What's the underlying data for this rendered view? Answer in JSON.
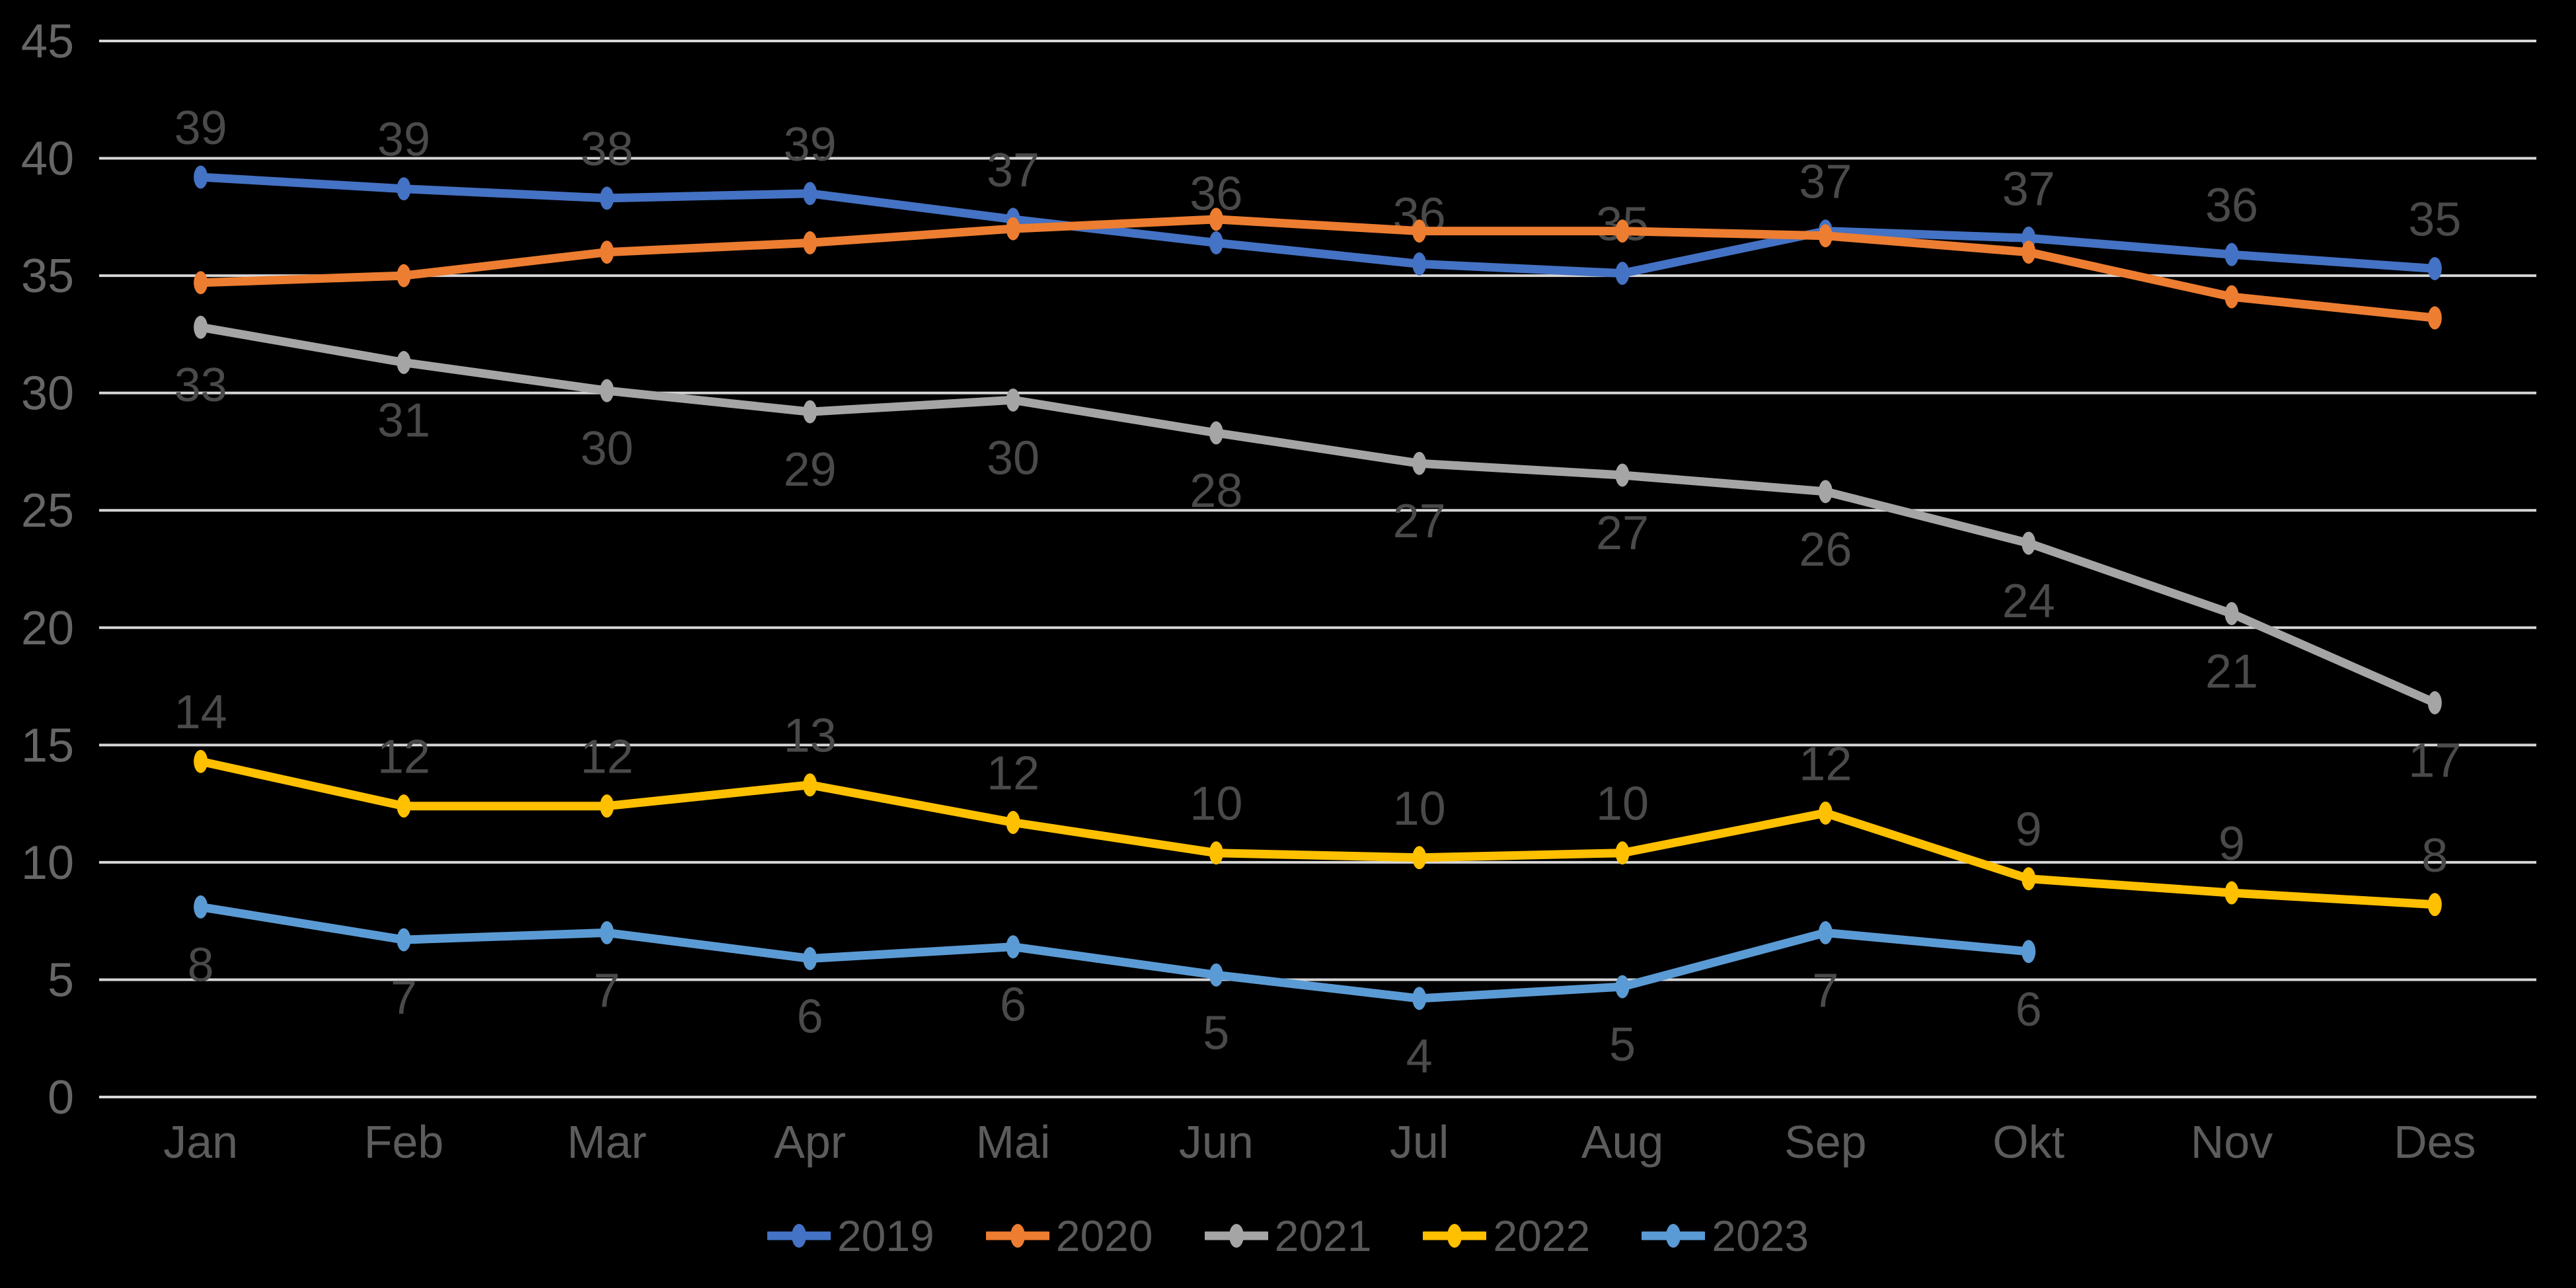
{
  "chart_data": {
    "type": "line",
    "title": "",
    "xlabel": "",
    "ylabel": "",
    "categories": [
      "Jan",
      "Feb",
      "Mar",
      "Apr",
      "Mai",
      "Jun",
      "Jul",
      "Aug",
      "Sep",
      "Okt",
      "Nov",
      "Des"
    ],
    "y_axis": {
      "min": 0,
      "max": 45,
      "step": 5,
      "tick_labels": [
        "0",
        "5",
        "10",
        "15",
        "20",
        "25",
        "30",
        "35",
        "40",
        "45"
      ]
    },
    "grid": true,
    "legend_position": "bottom",
    "series": [
      {
        "name": "2019",
        "color": "#4472C4",
        "label_position": "above",
        "values": [
          39.2,
          38.7,
          38.3,
          38.5,
          37.4,
          36.4,
          35.5,
          35.1,
          36.9,
          36.6,
          35.9,
          35.3
        ],
        "data_labels": [
          "39",
          "39",
          "38",
          "39",
          "37",
          "36",
          "36",
          "35",
          "37",
          "37",
          "36",
          "35"
        ]
      },
      {
        "name": "2020",
        "color": "#ED7D31",
        "label_position": null,
        "values": [
          34.7,
          35.0,
          36.0,
          36.4,
          37.0,
          37.4,
          36.9,
          36.9,
          36.7,
          36.0,
          34.1,
          33.2
        ],
        "data_labels": null
      },
      {
        "name": "2021",
        "color": "#A5A5A5",
        "label_position": "below",
        "values": [
          32.8,
          31.3,
          30.1,
          29.2,
          29.7,
          28.3,
          27.0,
          26.5,
          25.8,
          23.6,
          20.6,
          16.8
        ],
        "data_labels": [
          "33",
          "31",
          "30",
          "29",
          "30",
          "28",
          "27",
          "27",
          "26",
          "24",
          "21",
          "17"
        ]
      },
      {
        "name": "2022",
        "color": "#FFC000",
        "label_position": "above",
        "values": [
          14.3,
          12.4,
          12.4,
          13.3,
          11.7,
          10.4,
          10.2,
          10.4,
          12.1,
          9.3,
          8.7,
          8.2
        ],
        "data_labels": [
          "14",
          "12",
          "12",
          "13",
          "12",
          "10",
          "10",
          "10",
          "12",
          "9",
          "9",
          "8"
        ]
      },
      {
        "name": "2023",
        "color": "#5B9BD5",
        "label_position": "below",
        "values": [
          8.1,
          6.7,
          7.0,
          5.9,
          6.4,
          5.2,
          4.2,
          4.7,
          7.0,
          6.2
        ],
        "data_labels": [
          "8",
          "7",
          "7",
          "6",
          "6",
          "5",
          "4",
          "5",
          "7",
          "6"
        ]
      }
    ],
    "legend": [
      "2019",
      "2020",
      "2021",
      "2022",
      "2023"
    ],
    "colors": {
      "background": "#000000",
      "gridline": "#D6D6D6",
      "axis_label": "#666666",
      "month_label": "#5C5C5C",
      "data_label": "#4A4A4A",
      "legend_label": "#595959"
    }
  }
}
